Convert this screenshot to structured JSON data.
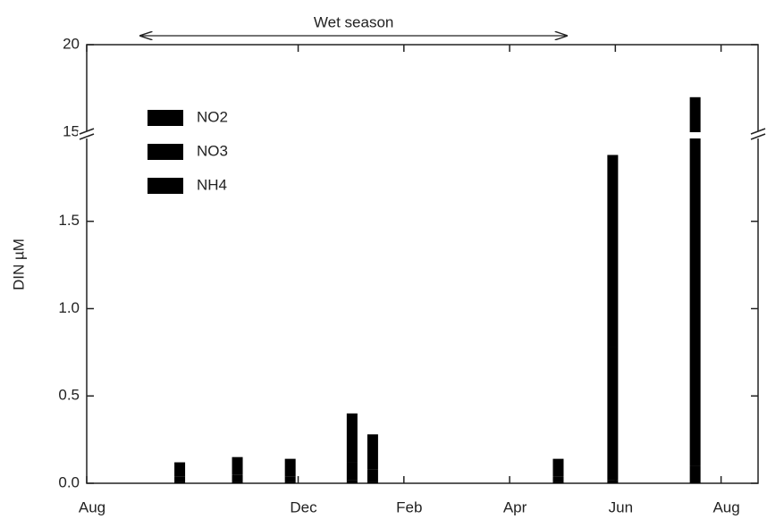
{
  "chart_data": {
    "type": "bar",
    "stacked": true,
    "y_label": "DIN µM",
    "annotation": "Wet season",
    "x": [
      1.76,
      2.85,
      3.85,
      5.02,
      5.41,
      8.92,
      9.95,
      11.51
    ],
    "series": [
      {
        "name": "NO2",
        "color": "#000000",
        "values": [
          0.01,
          0.01,
          0.01,
          0.02,
          0.01,
          0.01,
          0.02,
          0.1
        ]
      },
      {
        "name": "NO3",
        "color": "#000000",
        "values": [
          0.03,
          0.04,
          0.03,
          0.1,
          0.07,
          0.03,
          0.76,
          4.9
        ]
      },
      {
        "name": "NH4",
        "color": "#000000",
        "values": [
          0.08,
          0.1,
          0.1,
          0.28,
          0.2,
          0.1,
          1.1,
          12.0
        ]
      }
    ],
    "xlim": [
      0,
      12.7
    ],
    "xticks": [
      {
        "value": 0,
        "label": "Aug"
      },
      {
        "value": 4,
        "label": "Dec"
      },
      {
        "value": 6,
        "label": "Feb"
      },
      {
        "value": 8,
        "label": "Apr"
      },
      {
        "value": 10,
        "label": "Jun"
      },
      {
        "value": 12,
        "label": "Aug"
      }
    ],
    "ylim": [
      0,
      20
    ],
    "axis_break": [
      2,
      15
    ],
    "yticks": [
      {
        "value": 0,
        "label": "0.0"
      },
      0.5,
      {
        "value": 1,
        "label": "1.0"
      },
      1.5,
      15,
      20
    ],
    "annotation_span": [
      1.02,
      9.08
    ],
    "legend": "upper left"
  }
}
